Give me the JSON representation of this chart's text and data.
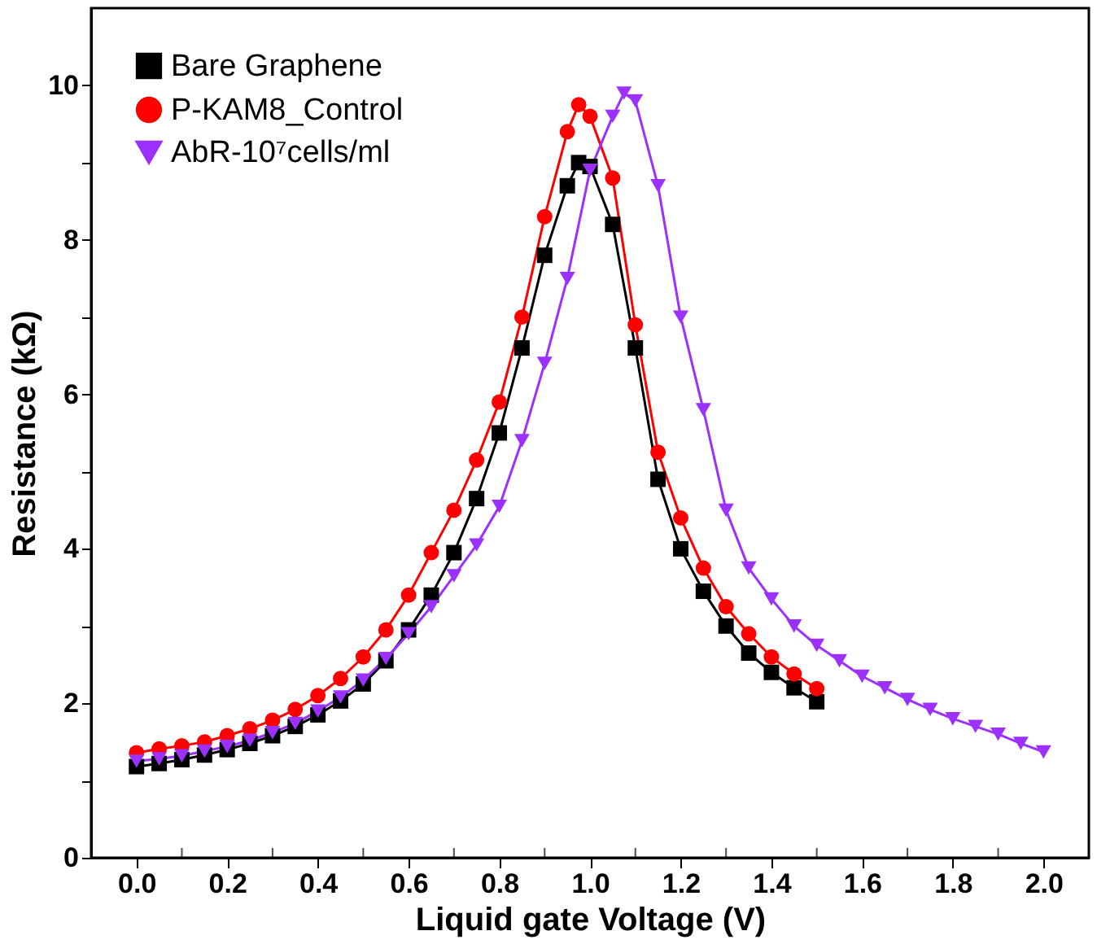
{
  "chart_data": {
    "type": "line",
    "xlabel": "Liquid gate Voltage (V)",
    "ylabel": "Resistance (kΩ)",
    "xlim": [
      -0.1,
      2.1
    ],
    "ylim": [
      0,
      11
    ],
    "xticks": [
      {
        "value": 0,
        "label": "0.0"
      },
      {
        "value": 0.1,
        "label": null
      },
      {
        "value": 0.2,
        "label": "0.2"
      },
      {
        "value": 0.3,
        "label": null
      },
      {
        "value": 0.4,
        "label": "0.4"
      },
      {
        "value": 0.5,
        "label": null
      },
      {
        "value": 0.6,
        "label": "0.6"
      },
      {
        "value": 0.7,
        "label": null
      },
      {
        "value": 0.8,
        "label": "0.8"
      },
      {
        "value": 0.9,
        "label": null
      },
      {
        "value": 1,
        "label": "1.0"
      },
      {
        "value": 1.1,
        "label": null
      },
      {
        "value": 1.2,
        "label": "1.2"
      },
      {
        "value": 1.3,
        "label": null
      },
      {
        "value": 1.4,
        "label": "1.4"
      },
      {
        "value": 1.5,
        "label": null
      },
      {
        "value": 1.6,
        "label": "1.6"
      },
      {
        "value": 1.7,
        "label": null
      },
      {
        "value": 1.8,
        "label": "1.8"
      },
      {
        "value": 1.9,
        "label": null
      },
      {
        "value": 2,
        "label": "2.0"
      }
    ],
    "yticks": [
      0,
      {
        "value": 1,
        "label": null
      },
      2,
      {
        "value": 3,
        "label": null
      },
      4,
      {
        "value": 5,
        "label": null
      },
      6,
      {
        "value": 7,
        "label": null
      },
      8,
      {
        "value": 9,
        "label": null
      },
      10
    ],
    "grid": false,
    "legend": "top left",
    "series": [
      {
        "name": "Bare Graphene",
        "color": "#000000",
        "marker": "square",
        "x": [
          0,
          0.05,
          0.1,
          0.15,
          0.2,
          0.25,
          0.3,
          0.35,
          0.4,
          0.45,
          0.5,
          0.55,
          0.6,
          0.65,
          0.7,
          0.75,
          0.8,
          0.85,
          0.9,
          0.95,
          0.975,
          1.0,
          1.05,
          1.1,
          1.15,
          1.2,
          1.25,
          1.3,
          1.35,
          1.4,
          1.45,
          1.5
        ],
        "values": [
          1.18,
          1.22,
          1.27,
          1.33,
          1.4,
          1.48,
          1.58,
          1.7,
          1.85,
          2.03,
          2.25,
          2.55,
          2.95,
          3.4,
          3.95,
          4.65,
          5.5,
          6.6,
          7.8,
          8.7,
          9.0,
          8.95,
          8.2,
          6.6,
          4.9,
          4.0,
          3.45,
          3.0,
          2.65,
          2.4,
          2.2,
          2.02
        ]
      },
      {
        "name": "P-KAM8_Control",
        "color": "#ff0000",
        "marker": "circle",
        "x": [
          0,
          0.05,
          0.1,
          0.15,
          0.2,
          0.25,
          0.3,
          0.35,
          0.4,
          0.45,
          0.5,
          0.55,
          0.6,
          0.65,
          0.7,
          0.75,
          0.8,
          0.85,
          0.9,
          0.95,
          0.975,
          1.0,
          1.05,
          1.1,
          1.15,
          1.2,
          1.25,
          1.3,
          1.35,
          1.4,
          1.45,
          1.5
        ],
        "values": [
          1.36,
          1.41,
          1.45,
          1.5,
          1.58,
          1.67,
          1.78,
          1.92,
          2.1,
          2.32,
          2.6,
          2.95,
          3.4,
          3.95,
          4.5,
          5.15,
          5.9,
          7.0,
          8.3,
          9.4,
          9.75,
          9.6,
          8.8,
          6.9,
          5.25,
          4.4,
          3.75,
          3.25,
          2.9,
          2.6,
          2.38,
          2.19
        ]
      },
      {
        "name": "AbR-10⁷cells/ml",
        "color": "#9b30ff",
        "marker": "triangle",
        "x": [
          0,
          0.05,
          0.1,
          0.15,
          0.2,
          0.25,
          0.3,
          0.35,
          0.4,
          0.45,
          0.5,
          0.55,
          0.6,
          0.65,
          0.7,
          0.75,
          0.8,
          0.85,
          0.9,
          0.95,
          1.0,
          1.05,
          1.075,
          1.1,
          1.15,
          1.2,
          1.25,
          1.3,
          1.35,
          1.4,
          1.45,
          1.5,
          1.55,
          1.6,
          1.65,
          1.7,
          1.75,
          1.8,
          1.85,
          1.9,
          1.95,
          2.0
        ],
        "values": [
          1.25,
          1.28,
          1.32,
          1.38,
          1.44,
          1.52,
          1.62,
          1.74,
          1.9,
          2.08,
          2.3,
          2.58,
          2.9,
          3.25,
          3.65,
          4.05,
          4.55,
          5.4,
          6.4,
          7.5,
          8.9,
          9.6,
          9.9,
          9.8,
          8.7,
          7.0,
          5.8,
          4.5,
          3.75,
          3.35,
          3.0,
          2.75,
          2.55,
          2.35,
          2.2,
          2.05,
          1.92,
          1.8,
          1.7,
          1.6,
          1.48,
          1.37
        ]
      }
    ]
  }
}
